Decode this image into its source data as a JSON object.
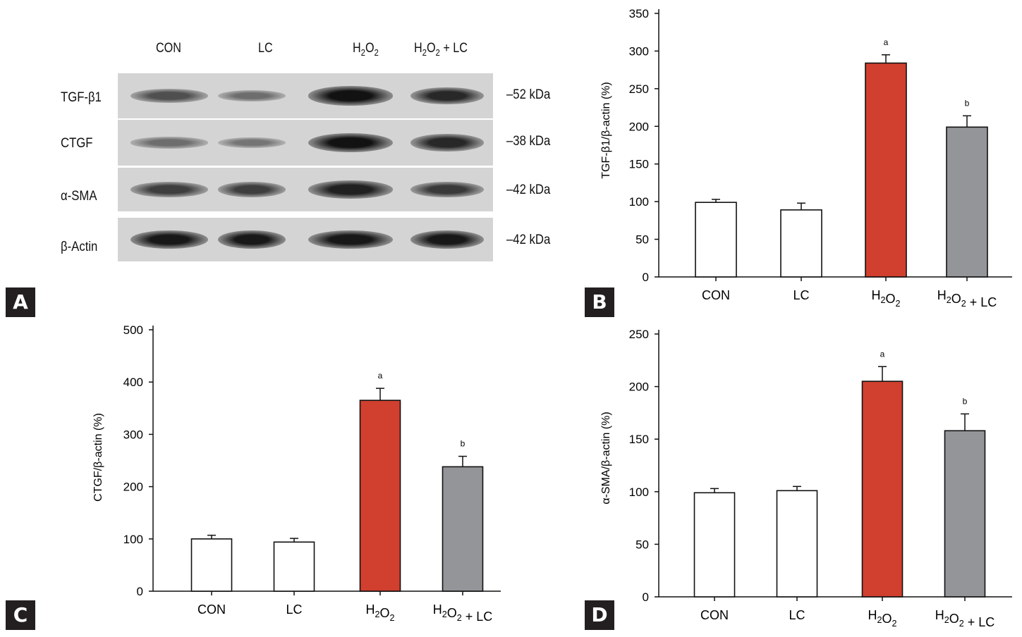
{
  "panels": {
    "a": "A",
    "b": "B",
    "c": "C",
    "d": "D"
  },
  "blot": {
    "lanes": [
      "CON",
      "LC",
      "H2O2",
      "H2O2 + LC"
    ],
    "proteins": [
      {
        "name": "TGF-β1",
        "kda": "–52 kDa",
        "intensity": [
          0.55,
          0.35,
          0.95,
          0.8
        ]
      },
      {
        "name": "CTGF",
        "kda": "–38 kDa",
        "intensity": [
          0.35,
          0.3,
          0.95,
          0.8
        ]
      },
      {
        "name": "α-SMA",
        "kda": "–42 kDa",
        "intensity": [
          0.65,
          0.65,
          0.85,
          0.7
        ]
      },
      {
        "name": "β-Actin",
        "kda": "–42 kDa",
        "intensity": [
          0.9,
          0.9,
          0.9,
          0.9
        ]
      }
    ]
  },
  "colors": {
    "con": "#ffffff",
    "lc": "#ffffff",
    "h2o2": "#d13f2e",
    "h2o2_lc": "#939598",
    "edge": "#111111"
  },
  "chart_data": [
    {
      "id": "B",
      "type": "bar",
      "categories": [
        "CON",
        "LC",
        "H2O2",
        "H2O2 + LC"
      ],
      "values": [
        99,
        89,
        284,
        199
      ],
      "errors": [
        4,
        9,
        11,
        15
      ],
      "annotations": [
        "",
        "",
        "a",
        "b"
      ],
      "ylabel": "TGF-β1/β-actin (%)",
      "ylim": [
        0,
        350
      ],
      "yticks": [
        0,
        50,
        100,
        150,
        200,
        250,
        300,
        350
      ]
    },
    {
      "id": "C",
      "type": "bar",
      "categories": [
        "CON",
        "LC",
        "H2O2",
        "H2O2 + LC"
      ],
      "values": [
        100,
        94,
        365,
        238
      ],
      "errors": [
        7,
        7,
        23,
        20
      ],
      "annotations": [
        "",
        "",
        "a",
        "b"
      ],
      "ylabel": "CTGF/β-actin (%)",
      "ylim": [
        0,
        500
      ],
      "yticks": [
        0,
        100,
        200,
        300,
        400,
        500
      ]
    },
    {
      "id": "D",
      "type": "bar",
      "categories": [
        "CON",
        "LC",
        "H2O2",
        "H2O2 + LC"
      ],
      "values": [
        99,
        101,
        205,
        158
      ],
      "errors": [
        4,
        4,
        14,
        16
      ],
      "annotations": [
        "",
        "",
        "a",
        "b"
      ],
      "ylabel": "α-SMA/β-actin (%)",
      "ylim": [
        0,
        250
      ],
      "yticks": [
        0,
        50,
        100,
        150,
        200,
        250
      ]
    }
  ]
}
